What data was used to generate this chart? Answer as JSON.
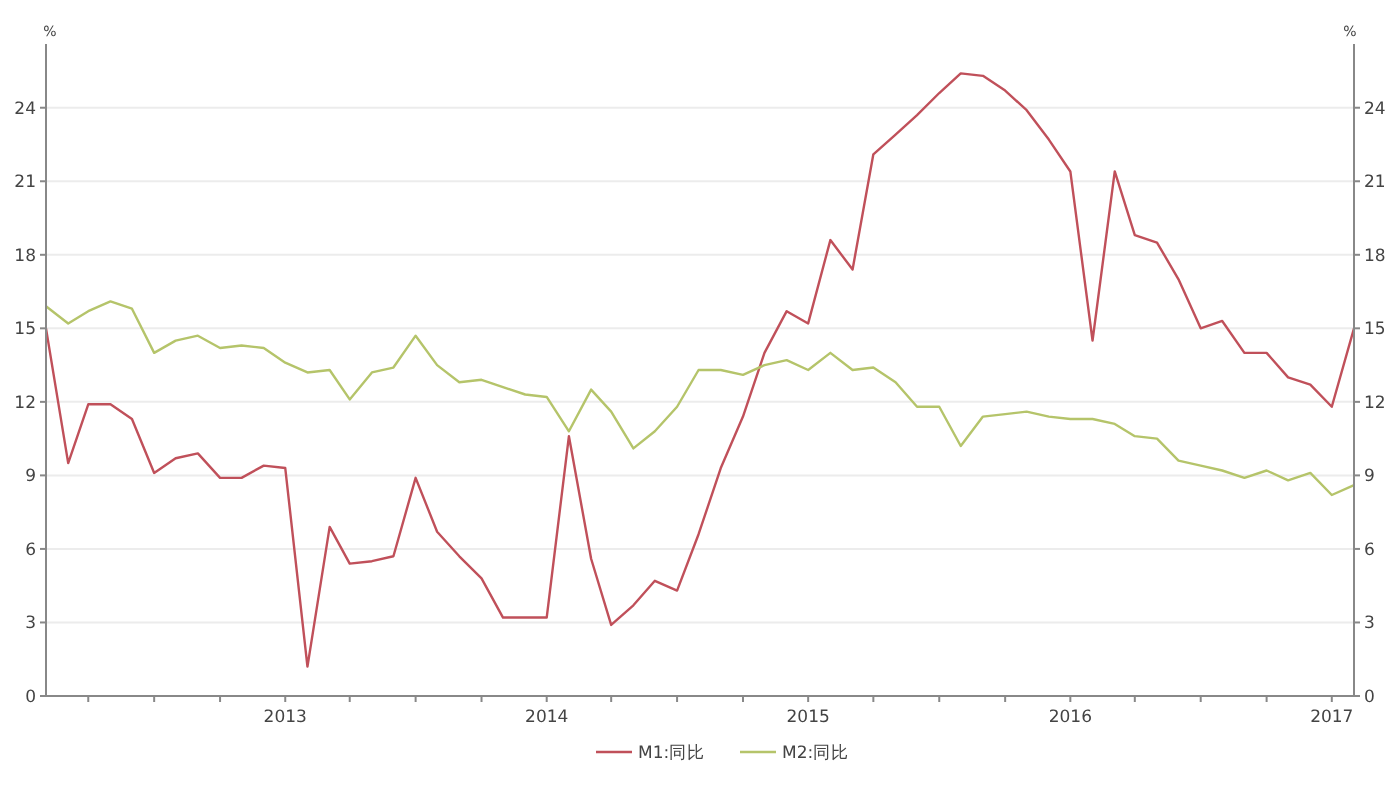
{
  "chart_data": {
    "type": "line",
    "ylabel": "%",
    "y2label": "%",
    "x": [
      "2013-01",
      "2013-02",
      "2013-03",
      "2013-04",
      "2013-05",
      "2013-06",
      "2013-07",
      "2013-08",
      "2013-09",
      "2013-10",
      "2013-11",
      "2013-12",
      "2014-01",
      "2014-02",
      "2014-03",
      "2014-04",
      "2014-05",
      "2014-06",
      "2014-07",
      "2014-08",
      "2014-09",
      "2014-10",
      "2014-11",
      "2014-12",
      "2015-01",
      "2015-02",
      "2015-03",
      "2015-04",
      "2015-05",
      "2015-06",
      "2015-07",
      "2015-08",
      "2015-09",
      "2015-10",
      "2015-11",
      "2015-12",
      "2016-01",
      "2016-02",
      "2016-03",
      "2016-04",
      "2016-05",
      "2016-06",
      "2016-07",
      "2016-08",
      "2016-09",
      "2016-10",
      "2016-11",
      "2016-12",
      "2017-01",
      "2017-02",
      "2017-03",
      "2017-04",
      "2017-05",
      "2017-06",
      "2017-07",
      "2017-08",
      "2017-09",
      "2017-10",
      "2017-11",
      "2017-12",
      "2018-01"
    ],
    "series": [
      {
        "name": "M1:同比",
        "color": "#c0505a",
        "values": [
          15.0,
          9.5,
          11.9,
          11.9,
          11.3,
          9.1,
          9.7,
          9.9,
          8.9,
          8.9,
          9.4,
          9.3,
          1.2,
          6.9,
          5.4,
          5.5,
          5.7,
          8.9,
          6.7,
          5.7,
          4.8,
          3.2,
          3.2,
          3.2,
          10.6,
          5.6,
          2.9,
          3.7,
          4.7,
          4.3,
          6.6,
          9.3,
          11.4,
          14.0,
          15.7,
          15.2,
          18.6,
          17.4,
          22.1,
          22.9,
          23.7,
          24.6,
          25.4,
          25.3,
          24.7,
          23.9,
          22.7,
          21.4,
          14.5,
          21.4,
          18.8,
          18.5,
          17.0,
          15.0,
          15.3,
          14.0,
          14.0,
          13.0,
          12.7,
          11.8,
          15.0
        ]
      },
      {
        "name": "M2:同比",
        "color": "#b5c46a",
        "values": [
          15.9,
          15.2,
          15.7,
          16.1,
          15.8,
          14.0,
          14.5,
          14.7,
          14.2,
          14.3,
          14.2,
          13.6,
          13.2,
          13.3,
          12.1,
          13.2,
          13.4,
          14.7,
          13.5,
          12.8,
          12.9,
          12.6,
          12.3,
          12.2,
          10.8,
          12.5,
          11.6,
          10.1,
          10.8,
          11.8,
          13.3,
          13.3,
          13.1,
          13.5,
          13.7,
          13.3,
          14.0,
          13.3,
          13.4,
          12.8,
          11.8,
          11.8,
          10.2,
          11.4,
          11.5,
          11.6,
          11.4,
          11.3,
          11.3,
          11.1,
          10.6,
          10.5,
          9.6,
          9.4,
          9.2,
          8.9,
          9.2,
          8.8,
          9.1,
          8.2,
          8.6
        ]
      }
    ],
    "xlim": [
      "2013-01",
      "2018-01"
    ],
    "xticks": [
      {
        "value": "2013-03",
        "label": null
      },
      {
        "value": "2013-06",
        "label": null
      },
      {
        "value": "2013-09",
        "label": null
      },
      {
        "value": "2013-12",
        "label": "2013"
      },
      {
        "value": "2014-03",
        "label": null
      },
      {
        "value": "2014-06",
        "label": null
      },
      {
        "value": "2014-09",
        "label": null
      },
      {
        "value": "2014-12",
        "label": "2014"
      },
      {
        "value": "2015-03",
        "label": null
      },
      {
        "value": "2015-06",
        "label": null
      },
      {
        "value": "2015-09",
        "label": null
      },
      {
        "value": "2015-12",
        "label": "2015"
      },
      {
        "value": "2016-03",
        "label": null
      },
      {
        "value": "2016-06",
        "label": null
      },
      {
        "value": "2016-09",
        "label": null
      },
      {
        "value": "2016-12",
        "label": "2016"
      },
      {
        "value": "2017-03",
        "label": null
      },
      {
        "value": "2017-06",
        "label": null
      },
      {
        "value": "2017-09",
        "label": null
      },
      {
        "value": "2017-12",
        "label": "2017"
      }
    ],
    "ylim": [
      0,
      26.6
    ],
    "yticks": [
      0,
      3,
      6,
      9,
      12,
      15,
      18,
      21,
      24
    ],
    "y2lim": [
      0,
      26.6
    ],
    "y2ticks": [
      0,
      3,
      6,
      9,
      12,
      15,
      18,
      21,
      24
    ],
    "grid": "y",
    "legend": "bottom",
    "marker": "none",
    "line_style": "solid"
  }
}
